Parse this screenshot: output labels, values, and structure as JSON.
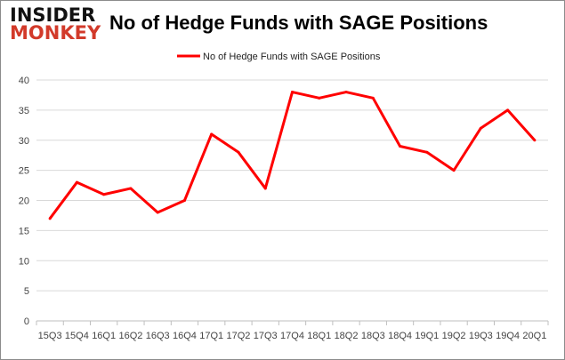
{
  "logo": {
    "line1": "INSIDER",
    "line2": "MONKEY"
  },
  "chart_data": {
    "type": "line",
    "title": "No of Hedge Funds with SAGE Positions",
    "categories": [
      "15Q3",
      "15Q4",
      "16Q1",
      "16Q2",
      "16Q3",
      "16Q4",
      "17Q1",
      "17Q2",
      "17Q3",
      "17Q4",
      "18Q1",
      "18Q2",
      "18Q3",
      "18Q4",
      "19Q1",
      "19Q2",
      "19Q3",
      "19Q4",
      "20Q1"
    ],
    "series": [
      {
        "name": "No of Hedge Funds with SAGE Positions",
        "values": [
          17,
          23,
          21,
          22,
          18,
          20,
          31,
          28,
          22,
          38,
          37,
          38,
          37,
          29,
          28,
          25,
          32,
          35,
          30
        ],
        "color": "#ff0000"
      }
    ],
    "ylim": [
      0,
      40
    ],
    "yticks": [
      0,
      5,
      10,
      15,
      20,
      25,
      30,
      35,
      40
    ],
    "grid": true,
    "legend": "top-center"
  }
}
